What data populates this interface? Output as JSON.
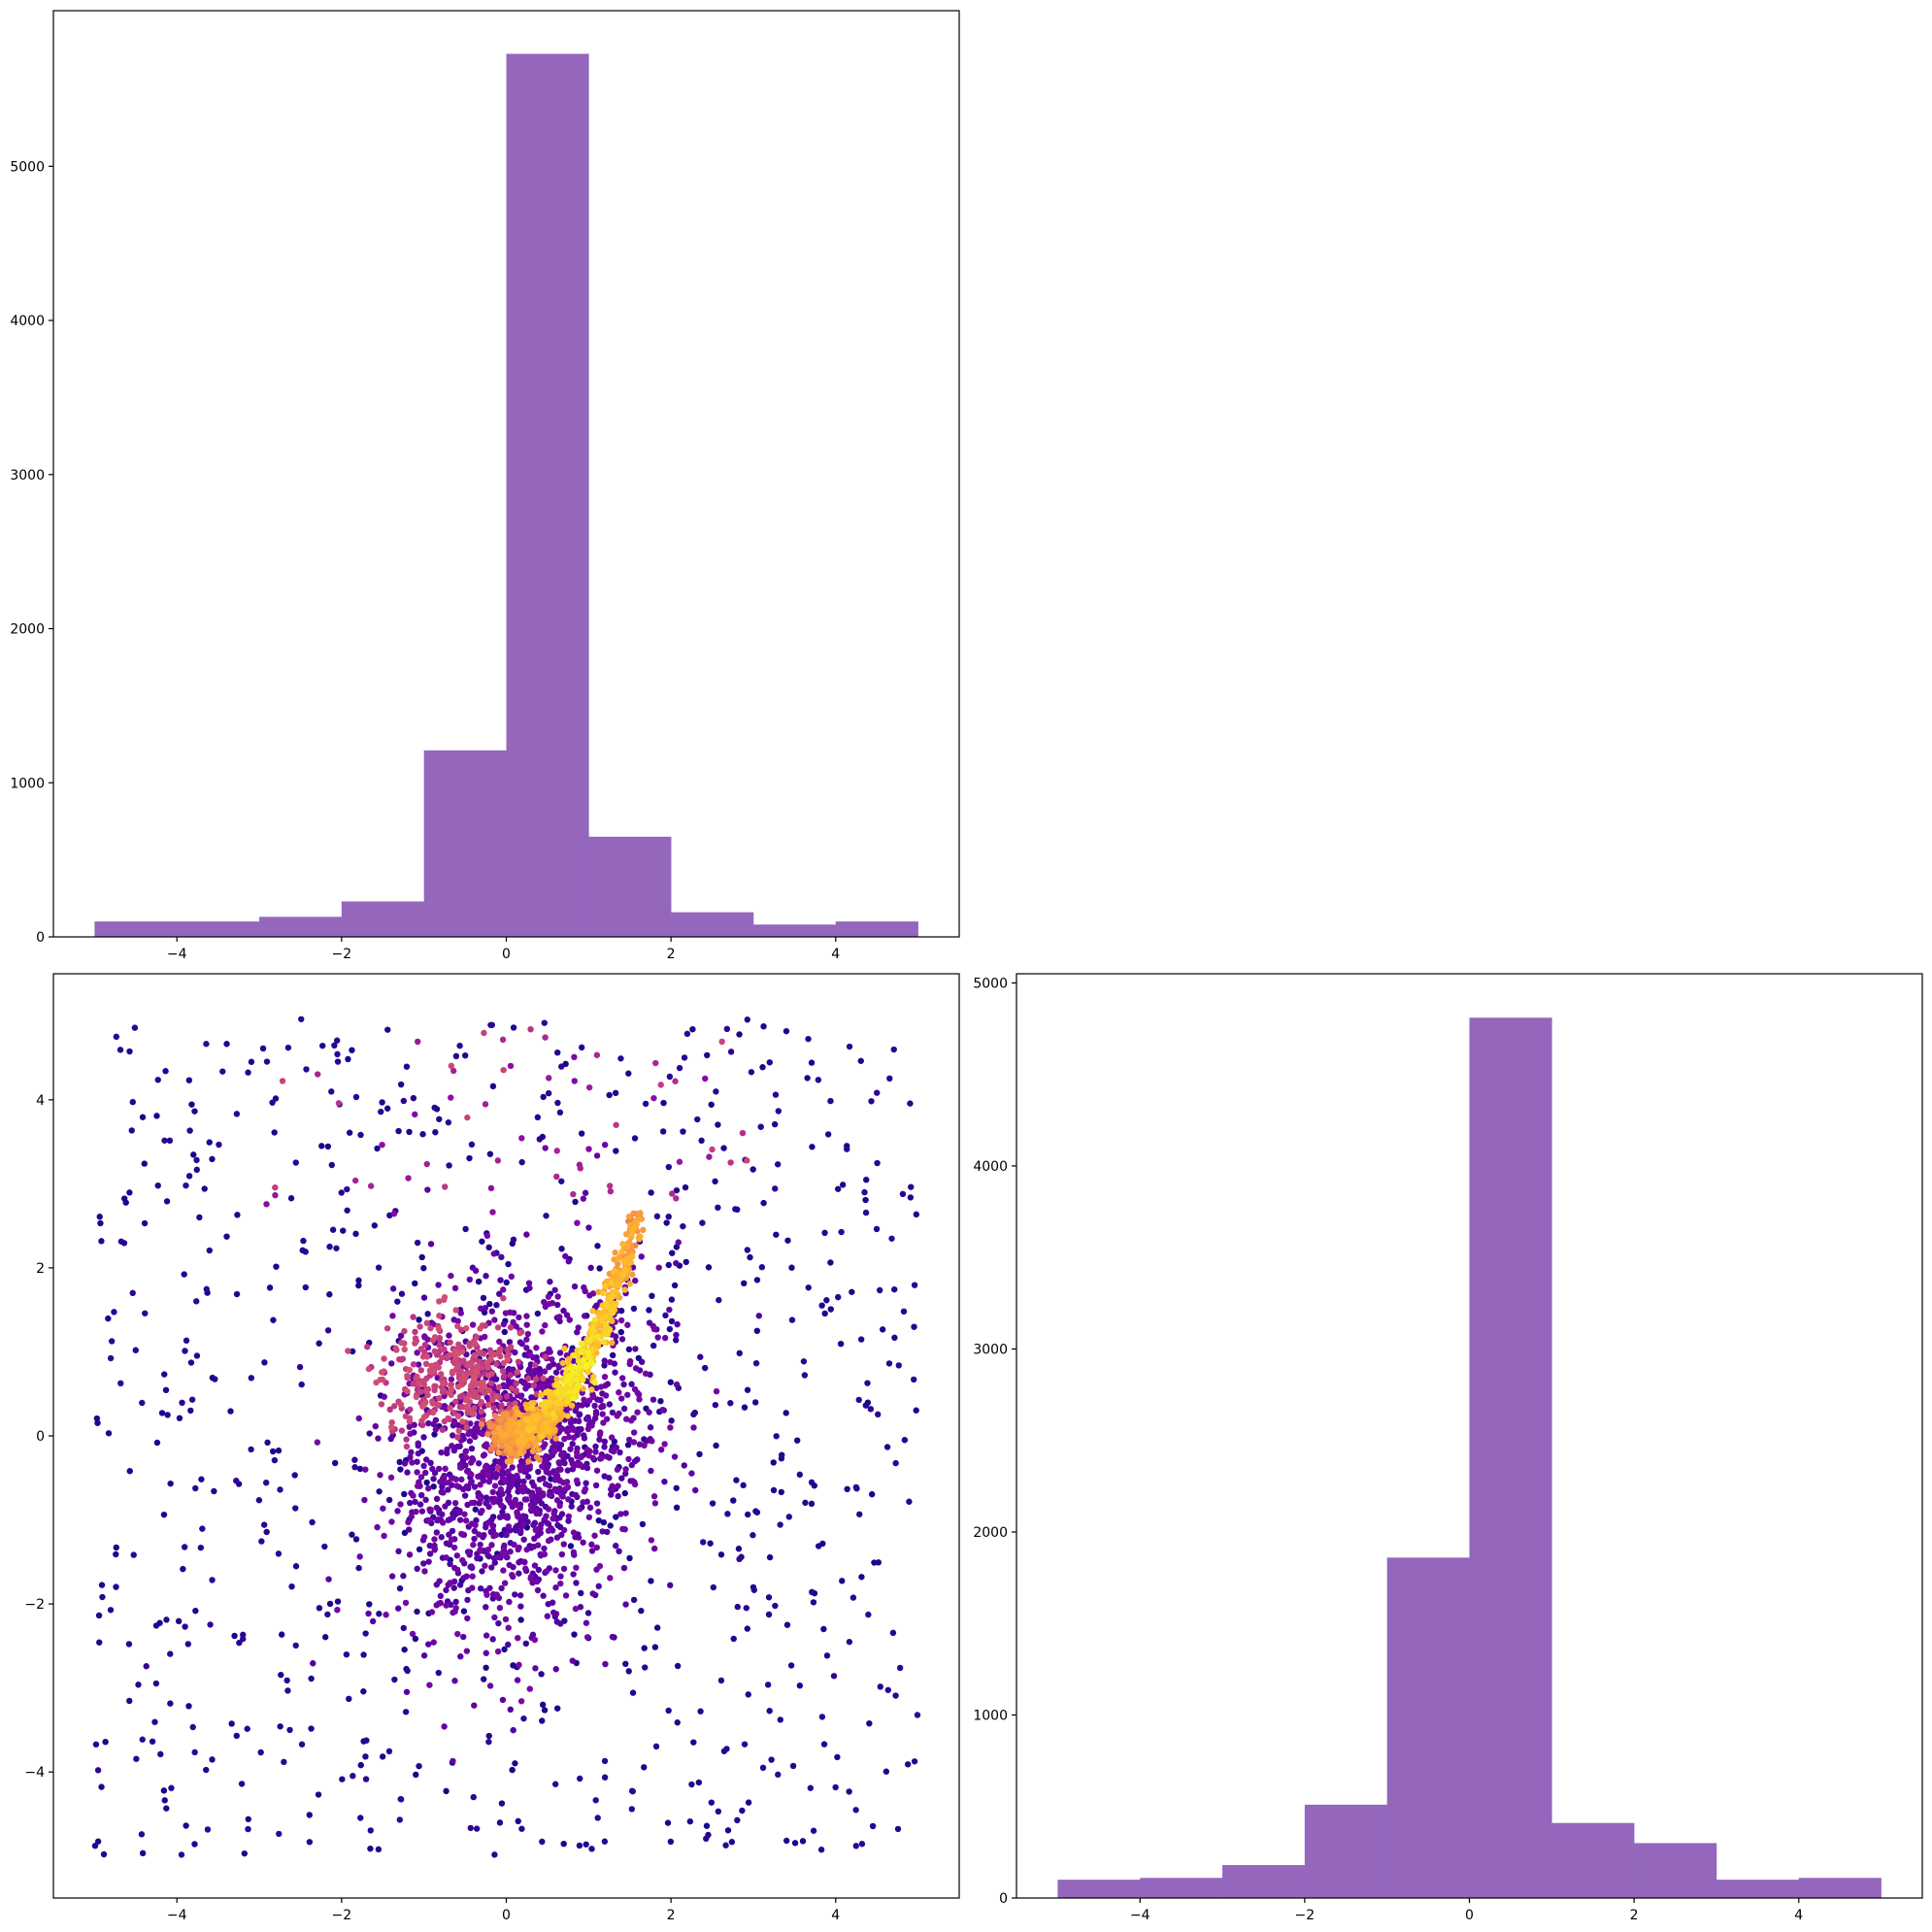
{
  "colors": {
    "bar": "#9467bd",
    "axes": "#000000",
    "background": "#ffffff",
    "scatter_colormap": "plasma"
  },
  "chart_data": [
    {
      "id": "hist_top",
      "type": "bar",
      "bin_edges": [
        -5,
        -4,
        -3,
        -2,
        -1,
        0,
        1,
        2,
        3,
        4,
        5
      ],
      "values": [
        100,
        100,
        130,
        230,
        1210,
        5730,
        650,
        160,
        80,
        100
      ],
      "xlim": [
        -5.5,
        5.5
      ],
      "ylim": [
        0,
        6010
      ],
      "xticks": [
        -4,
        -2,
        0,
        2,
        4
      ],
      "yticks": [
        0,
        1000,
        2000,
        3000,
        4000,
        5000
      ],
      "xtick_labels": [
        "−4",
        "−2",
        "0",
        "2",
        "4"
      ],
      "ytick_labels": [
        "0",
        "1000",
        "2000",
        "3000",
        "4000",
        "5000"
      ],
      "grid": false
    },
    {
      "id": "scatter",
      "type": "scatter",
      "x_range": [
        -5,
        5
      ],
      "y_range": [
        -5,
        5
      ],
      "xlim": [
        -5.5,
        5.5
      ],
      "ylim": [
        -5.5,
        5.5
      ],
      "xticks": [
        -4,
        -2,
        0,
        2,
        4
      ],
      "yticks": [
        -4,
        -2,
        0,
        2,
        4
      ],
      "xtick_labels": [
        "−4",
        "−2",
        "0",
        "2",
        "4"
      ],
      "ytick_labels": [
        "−4",
        "−2",
        "0",
        "2",
        "4"
      ],
      "color_by": "point density",
      "dense_region": "curved ridge from (0, 0) to (1.6, 2.6)",
      "grid": false
    },
    {
      "id": "hist_right",
      "type": "bar",
      "bin_edges": [
        -5,
        -4,
        -3,
        -2,
        -1,
        0,
        1,
        2,
        3,
        4,
        5
      ],
      "values": [
        100,
        110,
        180,
        510,
        1860,
        4810,
        410,
        300,
        100,
        110
      ],
      "xlim": [
        -5.5,
        5.5
      ],
      "ylim": [
        0,
        5050
      ],
      "xticks": [
        -4,
        -2,
        0,
        2,
        4
      ],
      "yticks": [
        0,
        1000,
        2000,
        3000,
        4000,
        5000
      ],
      "xtick_labels": [
        "−4",
        "−2",
        "0",
        "2",
        "4"
      ],
      "ytick_labels": [
        "0",
        "1000",
        "2000",
        "3000",
        "4000",
        "5000"
      ],
      "grid": false
    }
  ]
}
